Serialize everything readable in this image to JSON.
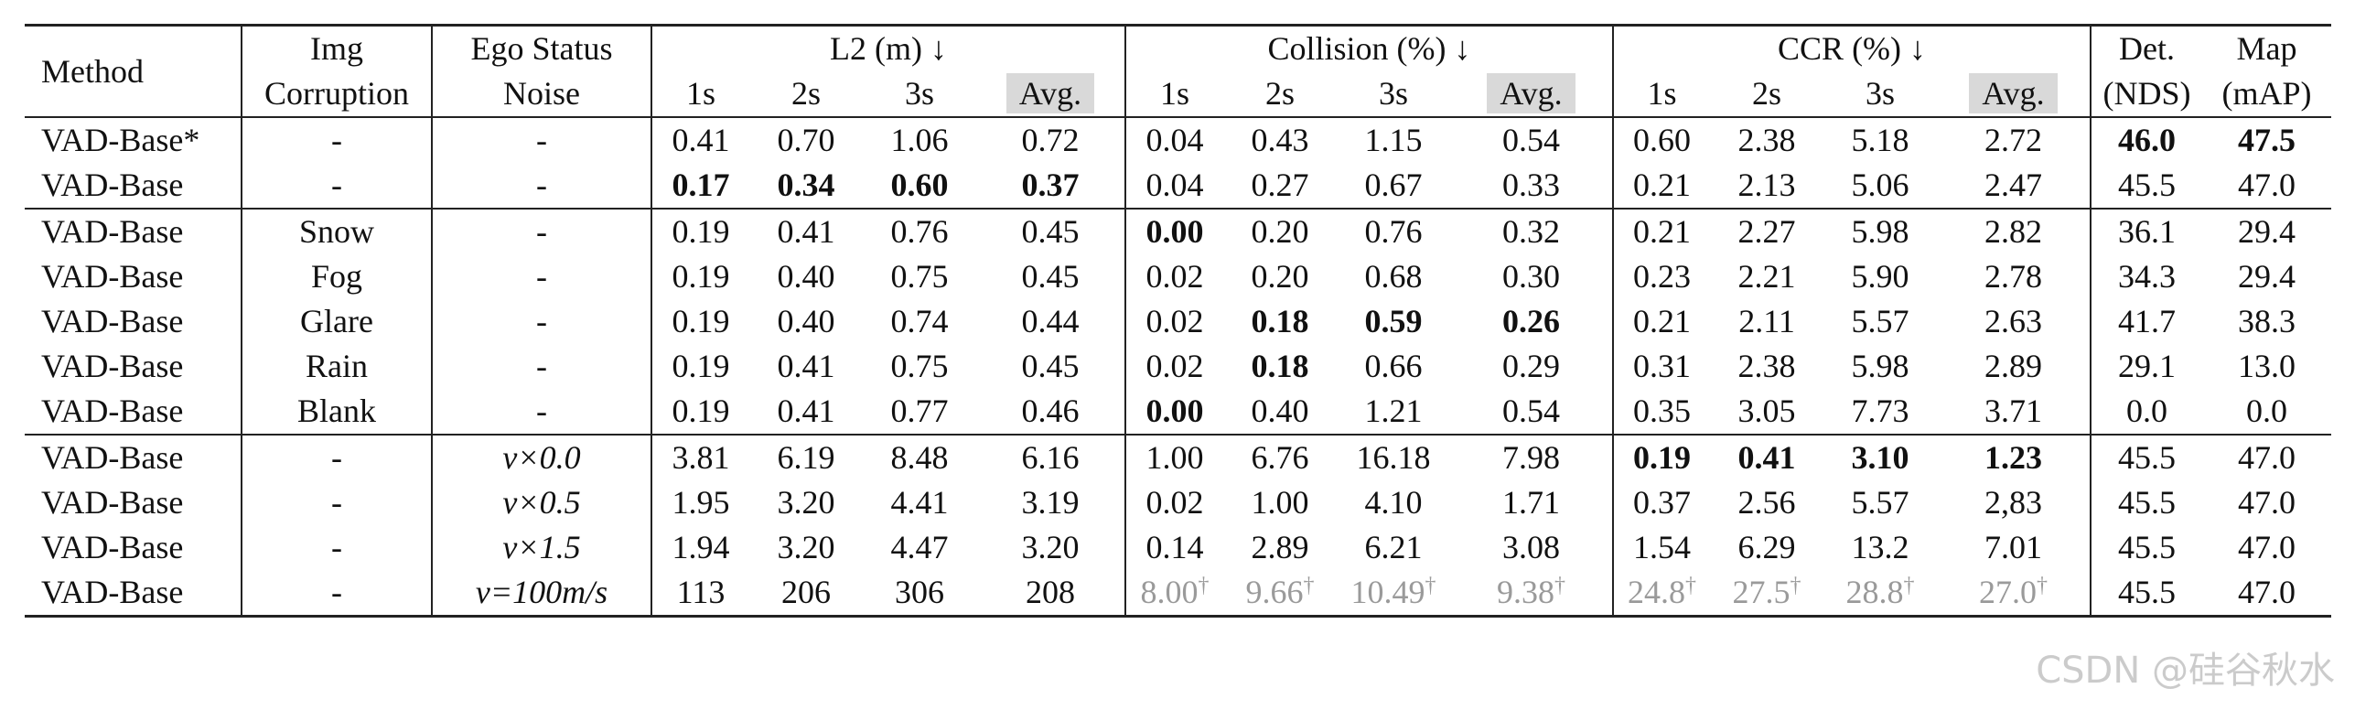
{
  "header": {
    "method": "Method",
    "img_corruption": [
      "Img",
      "Corruption"
    ],
    "ego_status_noise": [
      "Ego Status",
      "Noise"
    ],
    "l2": "L2 (m) ↓",
    "collision": "Collision (%) ↓",
    "ccr": "CCR (%) ↓",
    "det": [
      "Det.",
      "(NDS)"
    ],
    "map": [
      "Map",
      "(mAP)"
    ],
    "sub": [
      "1s",
      "2s",
      "3s",
      "Avg."
    ]
  },
  "rows": [
    {
      "method": "VAD-Base*",
      "img": "-",
      "noise": "-",
      "l2": [
        "0.41",
        "0.70",
        "1.06",
        "0.72"
      ],
      "col": [
        "0.04",
        "0.43",
        "1.15",
        "0.54"
      ],
      "ccr": [
        "0.60",
        "2.38",
        "5.18",
        "2.72"
      ],
      "det": "46.0",
      "map": "47.5"
    },
    {
      "method": "VAD-Base",
      "img": "-",
      "noise": "-",
      "l2": [
        "0.17",
        "0.34",
        "0.60",
        "0.37"
      ],
      "col": [
        "0.04",
        "0.27",
        "0.67",
        "0.33"
      ],
      "ccr": [
        "0.21",
        "2.13",
        "5.06",
        "2.47"
      ],
      "det": "45.5",
      "map": "47.0"
    },
    {
      "method": "VAD-Base",
      "img": "Snow",
      "noise": "-",
      "l2": [
        "0.19",
        "0.41",
        "0.76",
        "0.45"
      ],
      "col": [
        "0.00",
        "0.20",
        "0.76",
        "0.32"
      ],
      "ccr": [
        "0.21",
        "2.27",
        "5.98",
        "2.82"
      ],
      "det": "36.1",
      "map": "29.4"
    },
    {
      "method": "VAD-Base",
      "img": "Fog",
      "noise": "-",
      "l2": [
        "0.19",
        "0.40",
        "0.75",
        "0.45"
      ],
      "col": [
        "0.02",
        "0.20",
        "0.68",
        "0.30"
      ],
      "ccr": [
        "0.23",
        "2.21",
        "5.90",
        "2.78"
      ],
      "det": "34.3",
      "map": "29.4"
    },
    {
      "method": "VAD-Base",
      "img": "Glare",
      "noise": "-",
      "l2": [
        "0.19",
        "0.40",
        "0.74",
        "0.44"
      ],
      "col": [
        "0.02",
        "0.18",
        "0.59",
        "0.26"
      ],
      "ccr": [
        "0.21",
        "2.11",
        "5.57",
        "2.63"
      ],
      "det": "41.7",
      "map": "38.3"
    },
    {
      "method": "VAD-Base",
      "img": "Rain",
      "noise": "-",
      "l2": [
        "0.19",
        "0.41",
        "0.75",
        "0.45"
      ],
      "col": [
        "0.02",
        "0.18",
        "0.66",
        "0.29"
      ],
      "ccr": [
        "0.31",
        "2.38",
        "5.98",
        "2.89"
      ],
      "det": "29.1",
      "map": "13.0"
    },
    {
      "method": "VAD-Base",
      "img": "Blank",
      "noise": "-",
      "l2": [
        "0.19",
        "0.41",
        "0.77",
        "0.46"
      ],
      "col": [
        "0.00",
        "0.40",
        "1.21",
        "0.54"
      ],
      "ccr": [
        "0.35",
        "3.05",
        "7.73",
        "3.71"
      ],
      "det": "0.0",
      "map": "0.0"
    },
    {
      "method": "VAD-Base",
      "img": "-",
      "noise": "v×0.0",
      "l2": [
        "3.81",
        "6.19",
        "8.48",
        "6.16"
      ],
      "col": [
        "1.00",
        "6.76",
        "16.18",
        "7.98"
      ],
      "ccr": [
        "0.19",
        "0.41",
        "3.10",
        "1.23"
      ],
      "det": "45.5",
      "map": "47.0"
    },
    {
      "method": "VAD-Base",
      "img": "-",
      "noise": "v×0.5",
      "l2": [
        "1.95",
        "3.20",
        "4.41",
        "3.19"
      ],
      "col": [
        "0.02",
        "1.00",
        "4.10",
        "1.71"
      ],
      "ccr": [
        "0.37",
        "2.56",
        "5.57",
        "2,83"
      ],
      "det": "45.5",
      "map": "47.0"
    },
    {
      "method": "VAD-Base",
      "img": "-",
      "noise": "v×1.5",
      "l2": [
        "1.94",
        "3.20",
        "4.47",
        "3.20"
      ],
      "col": [
        "0.14",
        "2.89",
        "6.21",
        "3.08"
      ],
      "ccr": [
        "1.54",
        "6.29",
        "13.2",
        "7.01"
      ],
      "det": "45.5",
      "map": "47.0"
    },
    {
      "method": "VAD-Base",
      "img": "-",
      "noise": "v=100m/s",
      "l2": [
        "113",
        "206",
        "306",
        "208"
      ],
      "col": [
        "8.00",
        "9.66",
        "10.49",
        "9.38"
      ],
      "ccr": [
        "24.8",
        "27.5",
        "28.8",
        "27.0"
      ],
      "det": "45.5",
      "map": "47.0"
    }
  ],
  "dagger": "†",
  "watermark": "CSDN @硅谷秋水"
}
